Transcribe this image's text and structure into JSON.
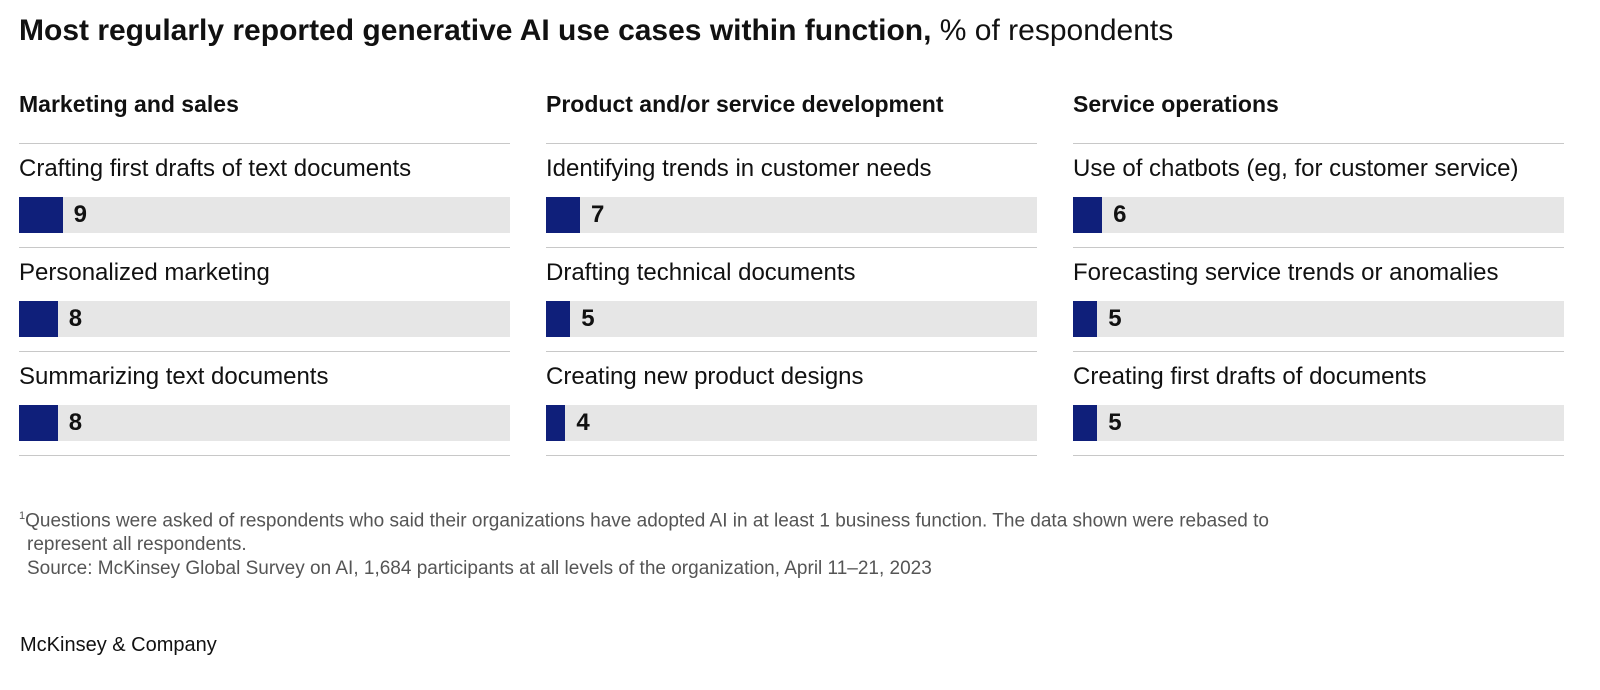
{
  "title": {
    "main": "Most regularly reported generative AI use cases within function,",
    "unit": "% of respondents"
  },
  "chart_data": {
    "type": "bar",
    "unit": "% of respondents",
    "panels": [
      {
        "heading": "Marketing and sales",
        "items": [
          {
            "label": "Crafting first drafts of text documents",
            "value": 9
          },
          {
            "label": "Personalized marketing",
            "value": 8
          },
          {
            "label": "Summarizing text documents",
            "value": 8
          }
        ]
      },
      {
        "heading": "Product and/or service development",
        "items": [
          {
            "label": "Identifying trends in customer needs",
            "value": 7
          },
          {
            "label": "Drafting technical documents",
            "value": 5
          },
          {
            "label": "Creating new product designs",
            "value": 4
          }
        ]
      },
      {
        "heading": "Service operations",
        "items": [
          {
            "label": "Use of chatbots (eg, for customer service)",
            "value": 6
          },
          {
            "label": "Forecasting service trends or anomalies",
            "value": 5
          },
          {
            "label": "Creating first drafts of documents",
            "value": 5
          }
        ]
      }
    ],
    "colors": {
      "bar": "#0f1f7a",
      "track": "#e6e6e6"
    }
  },
  "footnote": {
    "marker": "1",
    "line1": "Questions were asked of respondents who said their organizations have adopted AI in at least 1 business function. The data shown were rebased to",
    "line2": "represent all respondents.",
    "source": "Source: McKinsey Global Survey on AI, 1,684 participants at all levels of the organization, April 11–21, 2023"
  },
  "brand": "McKinsey & Company"
}
